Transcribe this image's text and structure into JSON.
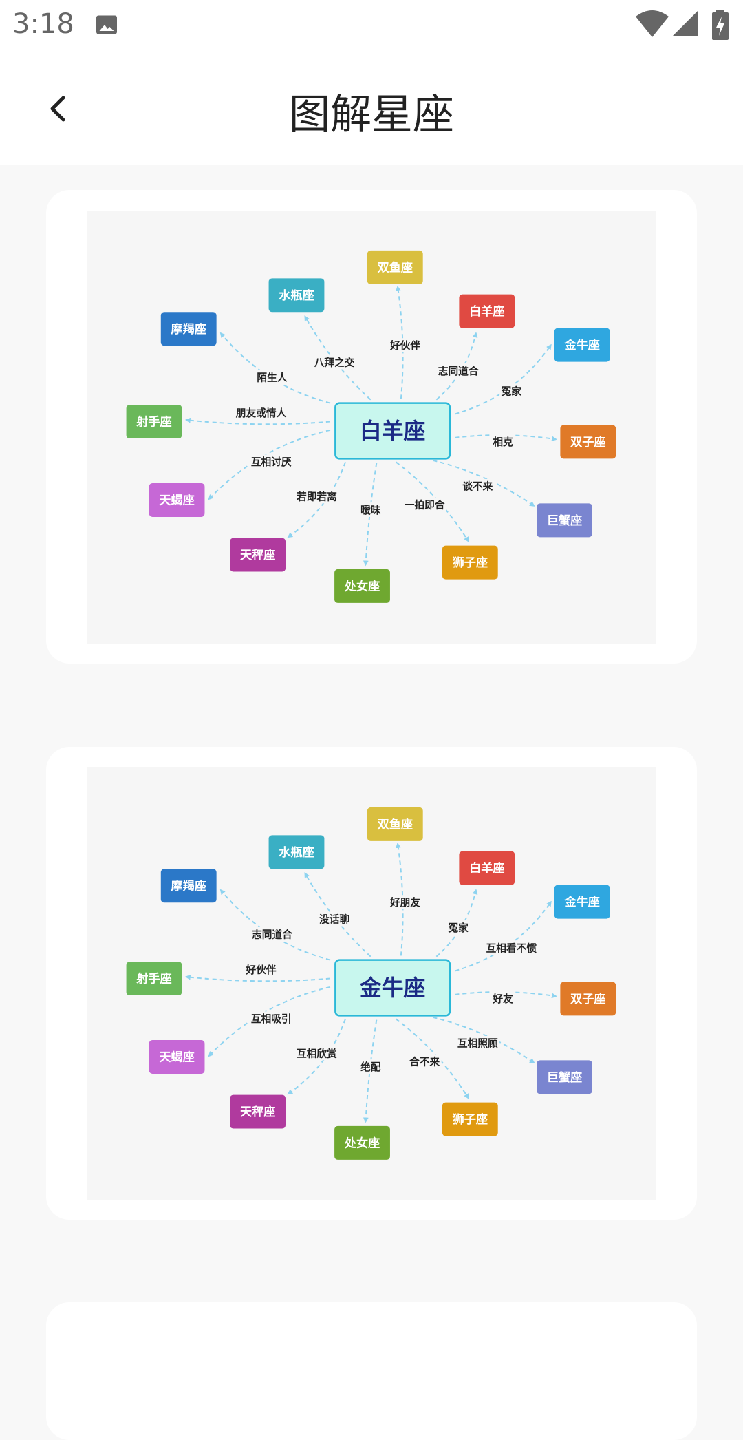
{
  "status_bar": {
    "time": "3:18",
    "icons": [
      "image-icon",
      "wifi-icon",
      "signal-icon",
      "battery-charging-icon"
    ]
  },
  "app_bar": {
    "title": "图解星座",
    "back_icon": "chevron-left-icon"
  },
  "colors": {
    "center_fill": "#c8f7ee",
    "center_border": "#2ab8d8",
    "center_text": "#1b2a85",
    "edge": "#8dd3f0"
  },
  "diagrams": [
    {
      "center": "白羊座",
      "nodes": [
        {
          "name": "双鱼座",
          "color": "#d9bf3f",
          "relation": "好伙伴"
        },
        {
          "name": "水瓶座",
          "color": "#3aafc4",
          "relation": "八拜之交"
        },
        {
          "name": "摩羯座",
          "color": "#2b78c8",
          "relation": "陌生人"
        },
        {
          "name": "白羊座",
          "color": "#e04a42",
          "relation": "志同道合"
        },
        {
          "name": "金牛座",
          "color": "#2fa7e0",
          "relation": "冤家"
        },
        {
          "name": "射手座",
          "color": "#6ab85a",
          "relation": "朋友或情人"
        },
        {
          "name": "双子座",
          "color": "#e07a28",
          "relation": "相克"
        },
        {
          "name": "天蝎座",
          "color": "#c668d6",
          "relation": "互相讨厌"
        },
        {
          "name": "巨蟹座",
          "color": "#7a85d0",
          "relation": "谈不来"
        },
        {
          "name": "天秤座",
          "color": "#b03a9e",
          "relation": "若即若离"
        },
        {
          "name": "狮子座",
          "color": "#e09a10",
          "relation": "一拍即合"
        },
        {
          "name": "处女座",
          "color": "#6fa830",
          "relation": "暧昧"
        }
      ]
    },
    {
      "center": "金牛座",
      "nodes": [
        {
          "name": "双鱼座",
          "color": "#d9bf3f",
          "relation": "好朋友"
        },
        {
          "name": "水瓶座",
          "color": "#3aafc4",
          "relation": "没话聊"
        },
        {
          "name": "摩羯座",
          "color": "#2b78c8",
          "relation": "志同道合"
        },
        {
          "name": "白羊座",
          "color": "#e04a42",
          "relation": "冤家"
        },
        {
          "name": "金牛座",
          "color": "#2fa7e0",
          "relation": "互相看不惯"
        },
        {
          "name": "射手座",
          "color": "#6ab85a",
          "relation": "好伙伴"
        },
        {
          "name": "双子座",
          "color": "#e07a28",
          "relation": "好友"
        },
        {
          "name": "天蝎座",
          "color": "#c668d6",
          "relation": "互相吸引"
        },
        {
          "name": "巨蟹座",
          "color": "#7a85d0",
          "relation": "互相照顾"
        },
        {
          "name": "天秤座",
          "color": "#b03a9e",
          "relation": "互相欣赏"
        },
        {
          "name": "狮子座",
          "color": "#e09a10",
          "relation": "合不来"
        },
        {
          "name": "处女座",
          "color": "#6fa830",
          "relation": "绝配"
        }
      ]
    }
  ]
}
